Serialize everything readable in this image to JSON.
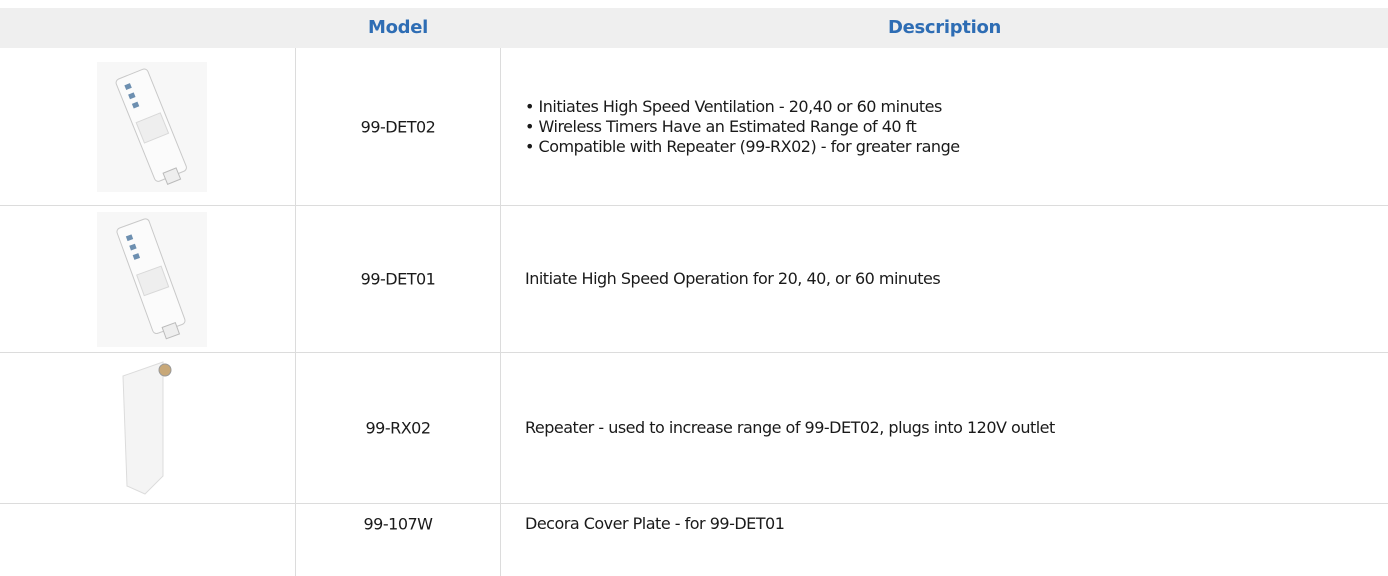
{
  "table": {
    "header": [
      "Model",
      "Description"
    ],
    "rows": [
      {
        "model": "99-DET02",
        "description": [
          "• Initiates High Speed Ventilation - 20,40 or 60 minutes",
          "• Wireless Timers Have an Estimated Range of 40 ft",
          "• Compatible with Repeater (99-RX02) - for greater range"
        ]
      },
      {
        "model": "99-DET01",
        "description": [
          "Initiate High Speed Operation for 20, 40, or 60 minutes"
        ]
      },
      {
        "model": "99-RX02",
        "description": [
          "Repeater - used to increase range of 99-DET02, plugs into 120V outlet"
        ]
      },
      {
        "model": "99-107W",
        "description": [
          "Decora Cover Plate - for 99-DET01"
        ]
      }
    ]
  }
}
